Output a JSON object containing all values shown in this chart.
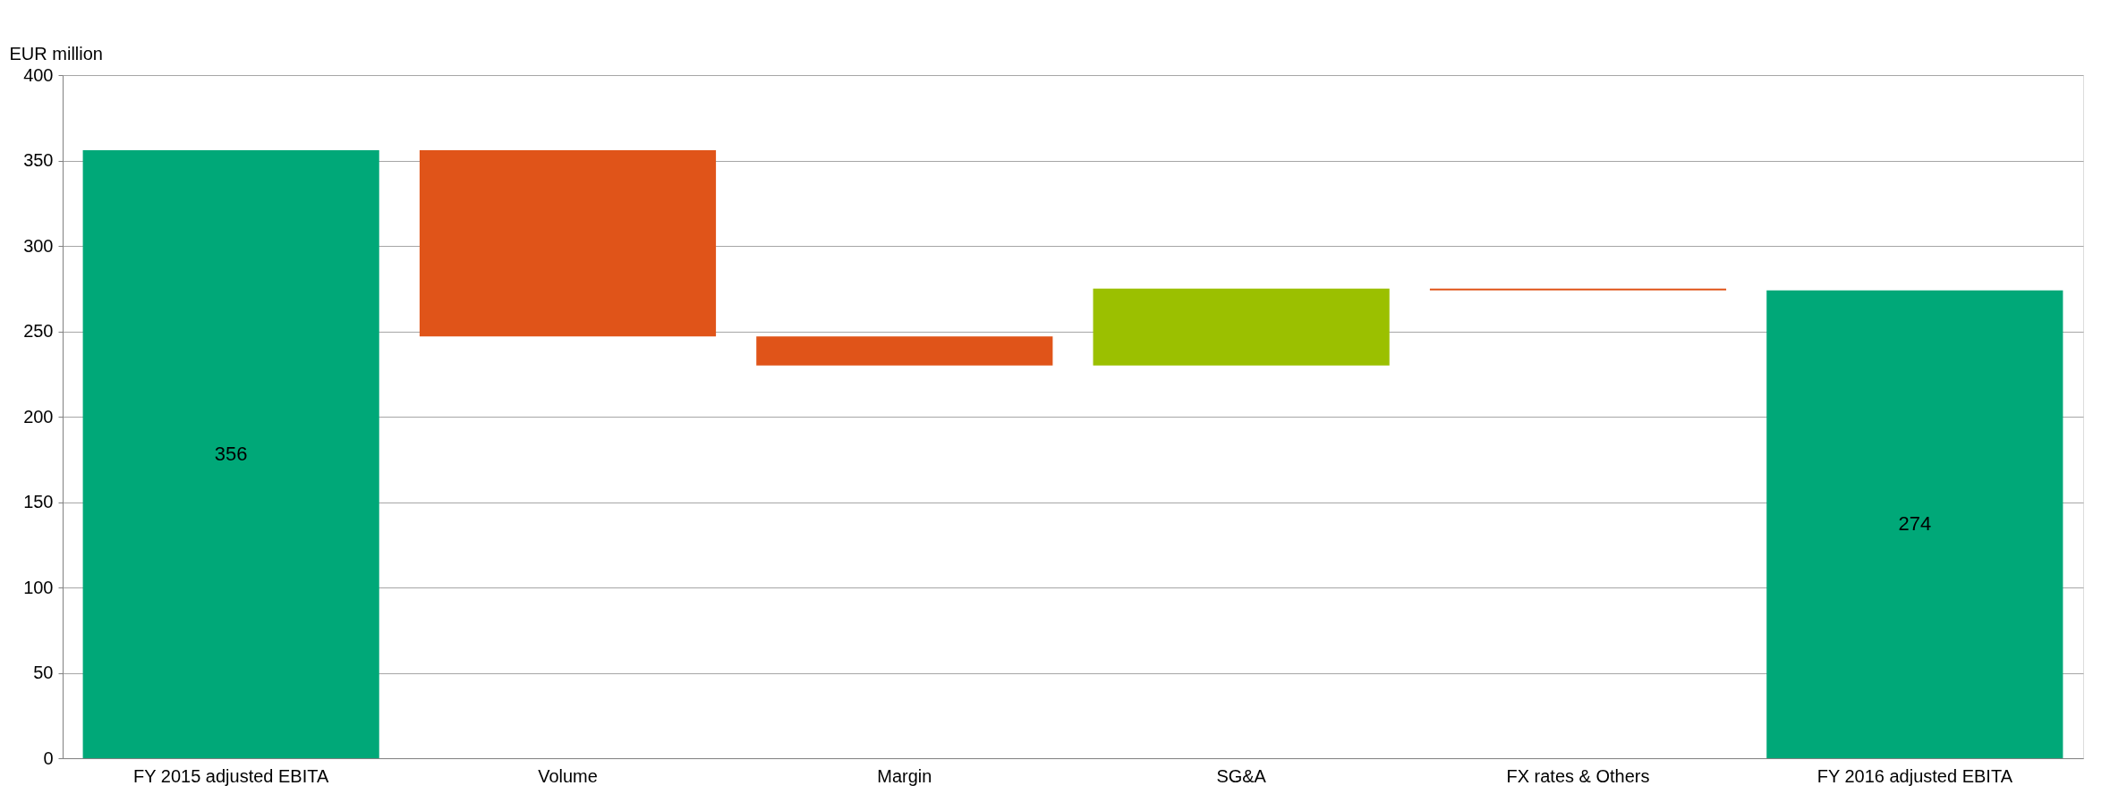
{
  "chart_data": {
    "type": "bar",
    "ylabel": "EUR million",
    "categories": [
      "FY 2015 adjusted EBITA",
      "Volume",
      "Margin",
      "SG&A",
      "FX rates & Others",
      "FY 2016 adjusted EBITA"
    ],
    "values": [
      356,
      -109,
      -17,
      45,
      -1,
      274
    ],
    "base": [
      0,
      356,
      247,
      230,
      275,
      0
    ],
    "colors": [
      "#00a878",
      "#e05419",
      "#e05419",
      "#9bc000",
      "#e05419",
      "#00a878"
    ],
    "value_labels": [
      "356",
      null,
      null,
      null,
      null,
      "274"
    ],
    "ylim": [
      0,
      400
    ],
    "yticks": [
      0,
      50,
      100,
      150,
      200,
      250,
      300,
      350,
      400
    ],
    "grid": "y"
  }
}
